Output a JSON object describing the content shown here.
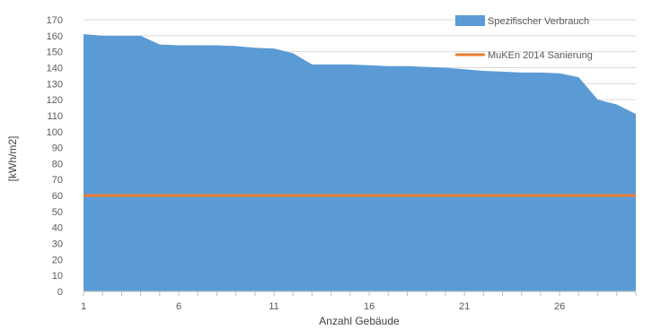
{
  "chart_data": {
    "type": "area",
    "xlabel": "Anzahl Gebäude",
    "ylabel": "[kWh/m2]",
    "ylim": [
      0,
      170
    ],
    "yticks": [
      0,
      10,
      20,
      30,
      40,
      50,
      60,
      70,
      80,
      90,
      100,
      110,
      120,
      130,
      140,
      150,
      160,
      170
    ],
    "xlim": [
      1,
      30
    ],
    "xticks": [
      1,
      6,
      11,
      16,
      21,
      26
    ],
    "grid": true,
    "legend_position": "top-right",
    "x": [
      1,
      2,
      3,
      4,
      5,
      6,
      7,
      8,
      9,
      10,
      11,
      12,
      13,
      14,
      15,
      16,
      17,
      18,
      19,
      20,
      21,
      22,
      23,
      24,
      25,
      26,
      27,
      28,
      29,
      30
    ],
    "series": [
      {
        "name": "Spezifischer Verbrauch",
        "kind": "area",
        "color": "#5b9bd5",
        "values": [
          161,
          160,
          160,
          160,
          154.5,
          154,
          154,
          154,
          153.5,
          152.5,
          152,
          149,
          142,
          142,
          142,
          141.5,
          141,
          141,
          140.5,
          140,
          139,
          138,
          137.5,
          137,
          137,
          136.5,
          134,
          120,
          117,
          111
        ]
      },
      {
        "name": "MuKEn 2014 Sanierung",
        "kind": "line",
        "color": "#ed7d31",
        "values": [
          60,
          60,
          60,
          60,
          60,
          60,
          60,
          60,
          60,
          60,
          60,
          60,
          60,
          60,
          60,
          60,
          60,
          60,
          60,
          60,
          60,
          60,
          60,
          60,
          60,
          60,
          60,
          60,
          60,
          60
        ]
      }
    ]
  }
}
